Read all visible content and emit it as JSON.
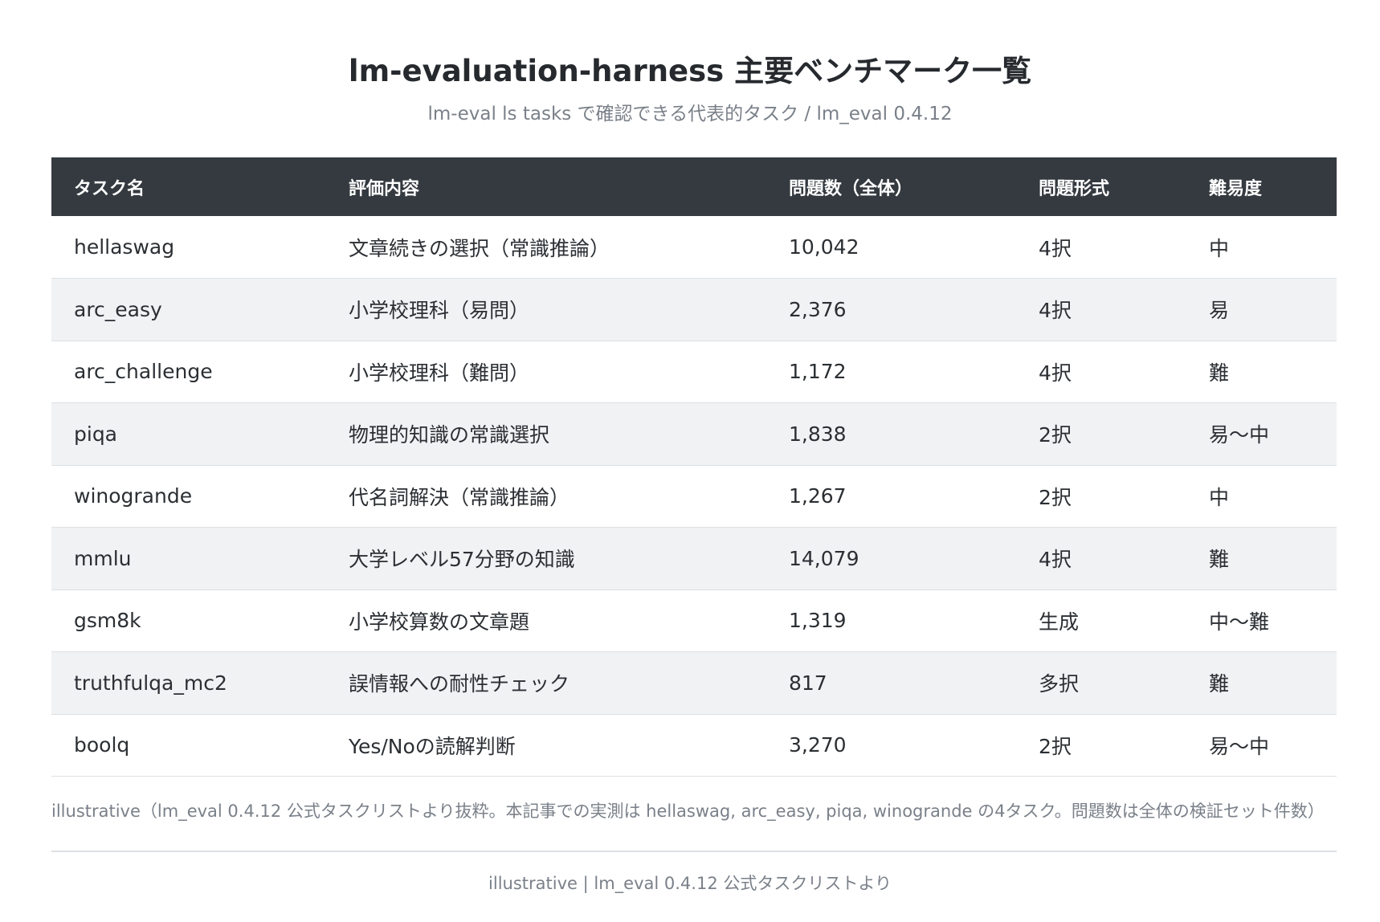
{
  "header": {
    "title": "lm-evaluation-harness 主要ベンチマーク一覧",
    "subtitle": "lm-eval ls tasks で確認できる代表的タスク / lm_eval 0.4.12"
  },
  "table": {
    "columns": [
      "タスク名",
      "評価内容",
      "問題数（全体）",
      "問題形式",
      "難易度"
    ],
    "rows": [
      [
        "hellaswag",
        "文章続きの選択（常識推論）",
        "10,042",
        "4択",
        "中"
      ],
      [
        "arc_easy",
        "小学校理科（易問）",
        "2,376",
        "4択",
        "易"
      ],
      [
        "arc_challenge",
        "小学校理科（難問）",
        "1,172",
        "4択",
        "難"
      ],
      [
        "piqa",
        "物理的知識の常識選択",
        "1,838",
        "2択",
        "易〜中"
      ],
      [
        "winogrande",
        "代名詞解決（常識推論）",
        "1,267",
        "2択",
        "中"
      ],
      [
        "mmlu",
        "大学レベル57分野の知識",
        "14,079",
        "4択",
        "難"
      ],
      [
        "gsm8k",
        "小学校算数の文章題",
        "1,319",
        "生成",
        "中〜難"
      ],
      [
        "truthfulqa_mc2",
        "誤情報への耐性チェック",
        "817",
        "多択",
        "難"
      ],
      [
        "boolq",
        "Yes/Noの読解判断",
        "3,270",
        "2択",
        "易〜中"
      ]
    ]
  },
  "note": "illustrative（lm_eval 0.4.12 公式タスクリストより抜粋。本記事での実測は hellaswag, arc_easy, piqa, winogrande の4タスク。問題数は全体の検証セット件数）",
  "footer": "illustrative | lm_eval 0.4.12 公式タスクリストより",
  "colors": {
    "header_bg": "#343a40",
    "row_alt_bg": "#f1f2f4",
    "muted_text": "#7a8089"
  }
}
